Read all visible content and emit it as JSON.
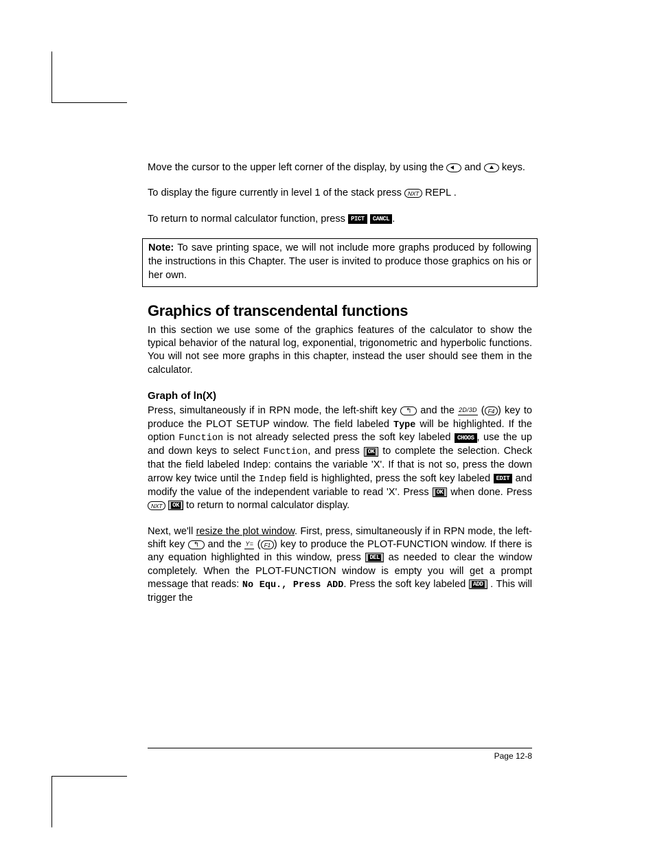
{
  "keys": {
    "nxt": "NXT",
    "f4": "F4",
    "f1": "F1",
    "left_arrow": "left",
    "up_arrow": "up",
    "lshift": "left-shift"
  },
  "softlabels": {
    "repl": "REPL",
    "twoD3D": "2D/3D",
    "yeq": "Y="
  },
  "softkeys": {
    "pict": "PICT",
    "cancl": "CANCL",
    "choos": "CHOOS",
    "ok": "OK",
    "edit": "EDIT",
    "del": "DEL",
    "add": "ADD"
  },
  "p1a": "Move the cursor to the upper left corner of the display, by using the ",
  "p1b": " and ",
  "p1c": " keys.",
  "p2a": "To display the figure currently in level 1 of the stack press ",
  "p2b": " REPL .",
  "p3a": "To return to normal calculator function, press ",
  "p3b": ".",
  "note_label": "Note:",
  "note_body": " To save printing space, we will not include more graphs produced by following the instructions in this Chapter.   The user is invited to produce those graphics on his or her own.",
  "section_title": "Graphics of transcendental functions",
  "section_intro": "In this section we use some of the graphics features of the calculator to show the typical behavior of the natural log, exponential, trigonometric and hyperbolic functions.   You will not see more graphs in this chapter, instead the user should see them in the calculator.",
  "subhead": "Graph of ln(X)",
  "g1a": "Press, simultaneously if in RPN mode, the left-shift key ",
  "g1b": " and the ",
  "g1c": " (",
  "g1d": ") key to produce the PLOT SETUP window.  The field labeled ",
  "g_type": "Type",
  "g1e": " will be highlighted.  If the option ",
  "g_function": "Function",
  "g1f": " is not already selected press the soft key labeled ",
  "g1g": ", use the up and down keys to select ",
  "g1h": ", and press ",
  "g1i": " to complete the selection.  Check that the field labeled Indep: contains the variable 'X'.  If that is not so, press the down arrow key twice until the ",
  "g_indep": "Indep",
  "g1j": " field is highlighted, press the soft key labeled ",
  "g1k": " and modify the value of the independent variable to read 'X'.   Press ",
  "g1l": " when done.   Press ",
  "g1m": " to return to normal calculator display.",
  "g2a": "Next, we'll ",
  "g2_resize": "resize the plot window",
  "g2b": ".  First, press, simultaneously if in RPN mode, the left-shift key ",
  "g2c": " and the ",
  "g2d": " (",
  "g2e": ") key to produce the PLOT-FUNCTION window.  If there is any equation highlighted in this window, press ",
  "g2f": " as needed to clear the window completely.   When the PLOT-FUNCTION window is empty you will get a prompt message that reads: ",
  "g2_noequ": "No Equ., Press ADD",
  "g2g": ".  Press the soft key labeled  ",
  "g2h": " . This will trigger the",
  "footer": "Page 12-8"
}
